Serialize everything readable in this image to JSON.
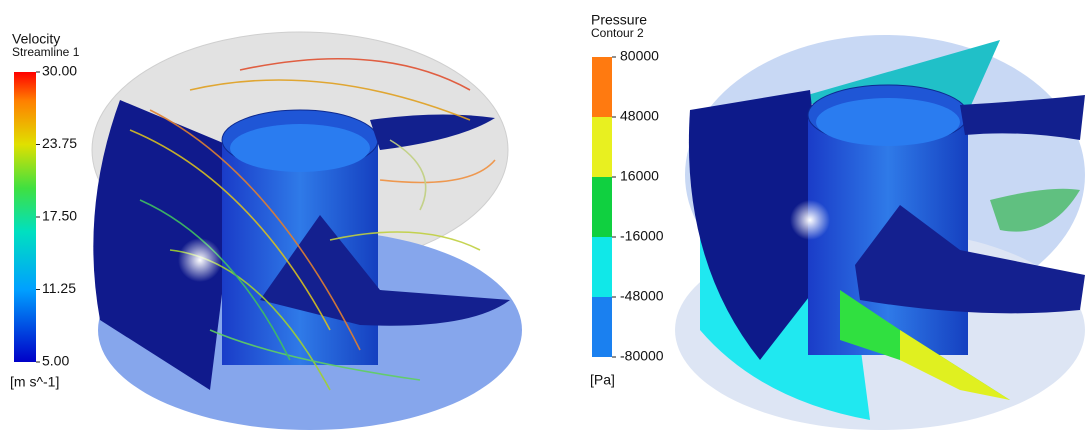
{
  "left_panel": {
    "legend": {
      "title": "Velocity",
      "subtitle": "Streamline 1",
      "ticks": [
        "30.00",
        "23.75",
        "17.50",
        "11.25",
        "5.00"
      ],
      "unit": "[m s^-1]"
    }
  },
  "right_panel": {
    "legend": {
      "title": "Pressure",
      "subtitle": "Contour 2",
      "ticks": [
        "80000",
        "48000",
        "16000",
        "-16000",
        "-48000",
        "-80000"
      ],
      "unit": "[Pa]"
    }
  }
}
